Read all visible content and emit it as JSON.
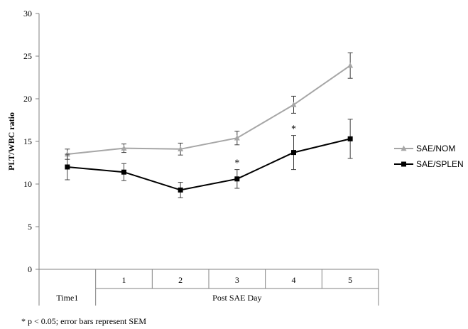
{
  "chart_data": {
    "type": "line",
    "ylabel": "PLT/WBC ratio",
    "ylim": [
      0,
      30
    ],
    "yticks": [
      0,
      5,
      10,
      15,
      20,
      25,
      30
    ],
    "categories": [
      "Time1",
      "1",
      "2",
      "3",
      "4",
      "5"
    ],
    "group_label": "Post SAE Day",
    "series": [
      {
        "name": "SAE/NOM",
        "color": "#a6a6a6",
        "marker": "triangle",
        "values": [
          13.5,
          14.2,
          14.1,
          15.4,
          19.3,
          23.9
        ],
        "errors": [
          0.6,
          0.5,
          0.7,
          0.8,
          1.0,
          1.5
        ]
      },
      {
        "name": "SAE/SPLEN",
        "color": "#000000",
        "marker": "square",
        "values": [
          12.0,
          11.4,
          9.3,
          10.6,
          13.7,
          15.3
        ],
        "errors": [
          1.5,
          1.0,
          0.9,
          1.1,
          2.0,
          2.3
        ]
      }
    ],
    "annotations": [
      {
        "text": "*",
        "category": "3",
        "y": 12.8
      },
      {
        "text": "*",
        "category": "4",
        "y": 16.8
      }
    ],
    "legend": "right",
    "grid": false
  },
  "footnote": "* p < 0.05; error bars represent SEM"
}
